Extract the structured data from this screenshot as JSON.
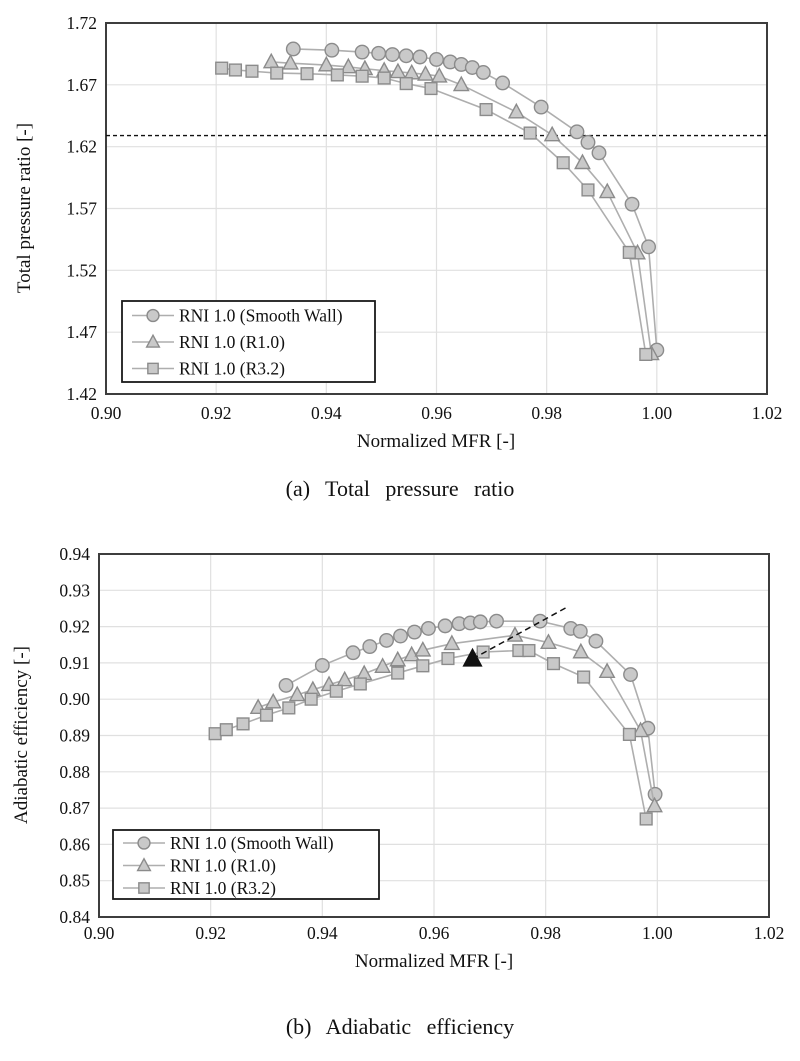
{
  "figure": {
    "caption_a": "(a) Total pressure ratio",
    "caption_b": "(b) Adiabatic efficiency"
  },
  "colors": {
    "grid": "#e0e0e0",
    "axis_border": "#3d3d3d",
    "series_line": "#aeaeae",
    "marker_fill": "#c9c9c9",
    "marker_stroke": "#8b8b8b",
    "annotation": "#111111",
    "text": "#111111",
    "legend_border": "#1a1a1a",
    "background": "#ffffff"
  },
  "chart_data": [
    {
      "id": "pressure-ratio",
      "type": "line",
      "title": "",
      "xlabel": "Normalized MFR [-]",
      "ylabel": "Total pressure ratio [-]",
      "xlim": [
        0.9,
        1.02
      ],
      "ylim": [
        1.42,
        1.72
      ],
      "xticks": [
        "0.90",
        "0.92",
        "0.94",
        "0.96",
        "0.98",
        "1.00",
        "1.02"
      ],
      "yticks": [
        "1.72",
        "1.67",
        "1.62",
        "1.57",
        "1.52",
        "1.47",
        "1.42"
      ],
      "grid": true,
      "legend_position": "lower-left",
      "reference_line": {
        "style": "dashed-horizontal",
        "y": 1.629
      },
      "series": [
        {
          "name": "RNI 1.0 (Smooth Wall)",
          "marker": "circle",
          "points": [
            [
              0.934,
              1.699
            ],
            [
              0.941,
              1.698
            ],
            [
              0.9465,
              1.6965
            ],
            [
              0.9495,
              1.6955
            ],
            [
              0.952,
              1.6945
            ],
            [
              0.9545,
              1.6935
            ],
            [
              0.957,
              1.6925
            ],
            [
              0.96,
              1.6905
            ],
            [
              0.9625,
              1.6885
            ],
            [
              0.9645,
              1.6865
            ],
            [
              0.9665,
              1.684
            ],
            [
              0.9685,
              1.68
            ],
            [
              0.972,
              1.6715
            ],
            [
              0.979,
              1.652
            ],
            [
              0.9855,
              1.632
            ],
            [
              0.9875,
              1.6235
            ],
            [
              0.9895,
              1.615
            ],
            [
              0.9955,
              1.5735
            ],
            [
              0.9985,
              1.539
            ],
            [
              1.0,
              1.4555
            ]
          ]
        },
        {
          "name": "RNI 1.0 (R1.0)",
          "marker": "triangle",
          "points": [
            [
              0.93,
              1.6885
            ],
            [
              0.9335,
              1.6875
            ],
            [
              0.94,
              1.686
            ],
            [
              0.944,
              1.6845
            ],
            [
              0.947,
              1.683
            ],
            [
              0.9505,
              1.6815
            ],
            [
              0.953,
              1.6805
            ],
            [
              0.9555,
              1.6795
            ],
            [
              0.958,
              1.6785
            ],
            [
              0.9605,
              1.677
            ],
            [
              0.9645,
              1.67
            ],
            [
              0.9745,
              1.648
            ],
            [
              0.981,
              1.6295
            ],
            [
              0.9865,
              1.607
            ],
            [
              0.991,
              1.5835
            ],
            [
              0.9965,
              1.534
            ],
            [
              0.999,
              1.4525
            ]
          ]
        },
        {
          "name": "RNI 1.0 (R3.2)",
          "marker": "square",
          "points": [
            [
              0.921,
              1.6835
            ],
            [
              0.9235,
              1.682
            ],
            [
              0.9265,
              1.681
            ],
            [
              0.931,
              1.6795
            ],
            [
              0.9365,
              1.679
            ],
            [
              0.942,
              1.678
            ],
            [
              0.9465,
              1.677
            ],
            [
              0.9505,
              1.6755
            ],
            [
              0.9545,
              1.671
            ],
            [
              0.959,
              1.667
            ],
            [
              0.969,
              1.65
            ],
            [
              0.977,
              1.631
            ],
            [
              0.983,
              1.607
            ],
            [
              0.9875,
              1.585
            ],
            [
              0.995,
              1.5345
            ],
            [
              0.998,
              1.452
            ]
          ]
        }
      ]
    },
    {
      "id": "adiabatic-efficiency",
      "type": "line",
      "title": "",
      "xlabel": "Normalized MFR [-]",
      "ylabel": "Adiabatic efficiency [-]",
      "xlim": [
        0.9,
        1.02
      ],
      "ylim": [
        0.84,
        0.94
      ],
      "xticks": [
        "0.90",
        "0.92",
        "0.94",
        "0.96",
        "0.98",
        "1.00",
        "1.02"
      ],
      "yticks": [
        "0.94",
        "0.93",
        "0.92",
        "0.91",
        "0.90",
        "0.89",
        "0.88",
        "0.87",
        "0.86",
        "0.85",
        "0.84"
      ],
      "grid": true,
      "legend_position": "lower-left",
      "annotation": {
        "style": "dashed-line",
        "line": [
          [
            0.9669,
            0.9111
          ],
          [
            0.984,
            0.9255
          ]
        ],
        "marker": "filled-triangle",
        "marker_at": [
          0.9669,
          0.9111
        ]
      },
      "series": [
        {
          "name": "RNI 1.0 (Smooth Wall)",
          "marker": "circle",
          "points": [
            [
              0.9335,
              0.9038
            ],
            [
              0.94,
              0.9093
            ],
            [
              0.9455,
              0.9128
            ],
            [
              0.9485,
              0.9145
            ],
            [
              0.9515,
              0.9162
            ],
            [
              0.954,
              0.9174
            ],
            [
              0.9565,
              0.9185
            ],
            [
              0.959,
              0.9195
            ],
            [
              0.962,
              0.9202
            ],
            [
              0.9645,
              0.9208
            ],
            [
              0.9665,
              0.921
            ],
            [
              0.9683,
              0.9213
            ],
            [
              0.9712,
              0.9215
            ],
            [
              0.979,
              0.9215
            ],
            [
              0.9845,
              0.9195
            ],
            [
              0.9862,
              0.9187
            ],
            [
              0.989,
              0.916
            ],
            [
              0.9952,
              0.9068
            ],
            [
              0.9983,
              0.892
            ],
            [
              0.9996,
              0.8738
            ]
          ]
        },
        {
          "name": "RNI 1.0 (R1.0)",
          "marker": "triangle",
          "points": [
            [
              0.9285,
              0.8977
            ],
            [
              0.9312,
              0.8992
            ],
            [
              0.9355,
              0.9012
            ],
            [
              0.9383,
              0.9026
            ],
            [
              0.9412,
              0.904
            ],
            [
              0.944,
              0.9053
            ],
            [
              0.9475,
              0.907
            ],
            [
              0.9508,
              0.909
            ],
            [
              0.9535,
              0.9108
            ],
            [
              0.956,
              0.9122
            ],
            [
              0.958,
              0.9135
            ],
            [
              0.9632,
              0.9153
            ],
            [
              0.9745,
              0.9176
            ],
            [
              0.9805,
              0.9156
            ],
            [
              0.9863,
              0.913
            ],
            [
              0.991,
              0.9076
            ],
            [
              0.997,
              0.8913
            ],
            [
              0.9995,
              0.8706
            ]
          ]
        },
        {
          "name": "RNI 1.0 (R3.2)",
          "marker": "square",
          "points": [
            [
              0.9208,
              0.8905
            ],
            [
              0.9228,
              0.8916
            ],
            [
              0.9258,
              0.8932
            ],
            [
              0.93,
              0.8956
            ],
            [
              0.934,
              0.8976
            ],
            [
              0.938,
              0.9
            ],
            [
              0.9425,
              0.9022
            ],
            [
              0.9468,
              0.9042
            ],
            [
              0.9535,
              0.9072
            ],
            [
              0.958,
              0.9092
            ],
            [
              0.9625,
              0.9112
            ],
            [
              0.9688,
              0.913
            ],
            [
              0.9752,
              0.9134
            ],
            [
              0.977,
              0.9134
            ],
            [
              0.9814,
              0.9098
            ],
            [
              0.9868,
              0.9061
            ],
            [
              0.995,
              0.8903
            ],
            [
              0.998,
              0.867
            ]
          ]
        }
      ]
    }
  ]
}
